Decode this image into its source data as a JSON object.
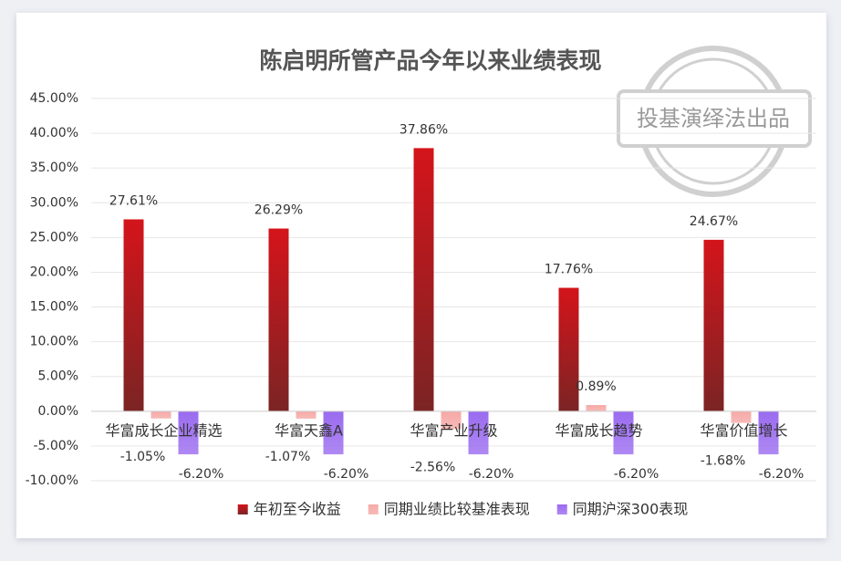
{
  "chart_data": {
    "type": "bar",
    "title": "陈启明所管产品今年以来业绩表现",
    "watermark": "投基演绎法出品",
    "categories": [
      "华富成长企业精选",
      "华富天鑫A",
      "华富产业升级",
      "华富成长趋势",
      "华富价值增长"
    ],
    "series": [
      {
        "name": "年初至今收益",
        "color": "#d4141b",
        "values": [
          27.61,
          26.29,
          37.86,
          17.76,
          24.67
        ],
        "value_labels": [
          "27.61%",
          "26.29%",
          "37.86%",
          "17.76%",
          "24.67%"
        ]
      },
      {
        "name": "同期业绩比较基准表现",
        "color": "#f5a9a6",
        "values": [
          -1.05,
          -1.07,
          -2.56,
          0.89,
          -1.68
        ],
        "value_labels": [
          "-1.05%",
          "-1.07%",
          "-2.56%",
          "0.89%",
          "-1.68%"
        ]
      },
      {
        "name": "同期沪深300表现",
        "color": "#9a6bf0",
        "values": [
          -6.2,
          -6.2,
          -6.2,
          -6.2,
          -6.2
        ],
        "value_labels": [
          "-6.20%",
          "-6.20%",
          "-6.20%",
          "-6.20%",
          "-6.20%"
        ]
      }
    ],
    "ylim": [
      -10,
      45
    ],
    "yticks": [
      {
        "value": -10,
        "label": "-10.00%"
      },
      {
        "value": -5,
        "label": "-5.00%"
      },
      {
        "value": 0,
        "label": "0.00%"
      },
      {
        "value": 5,
        "label": "5.00%"
      },
      {
        "value": 10,
        "label": "10.00%"
      },
      {
        "value": 15,
        "label": "15.00%"
      },
      {
        "value": 20,
        "label": "20.00%"
      },
      {
        "value": 25,
        "label": "25.00%"
      },
      {
        "value": 30,
        "label": "30.00%"
      },
      {
        "value": 35,
        "label": "35.00%"
      },
      {
        "value": 40,
        "label": "40.00%"
      },
      {
        "value": 45,
        "label": "45.00%"
      }
    ],
    "grid": true,
    "legend": "bottom"
  }
}
